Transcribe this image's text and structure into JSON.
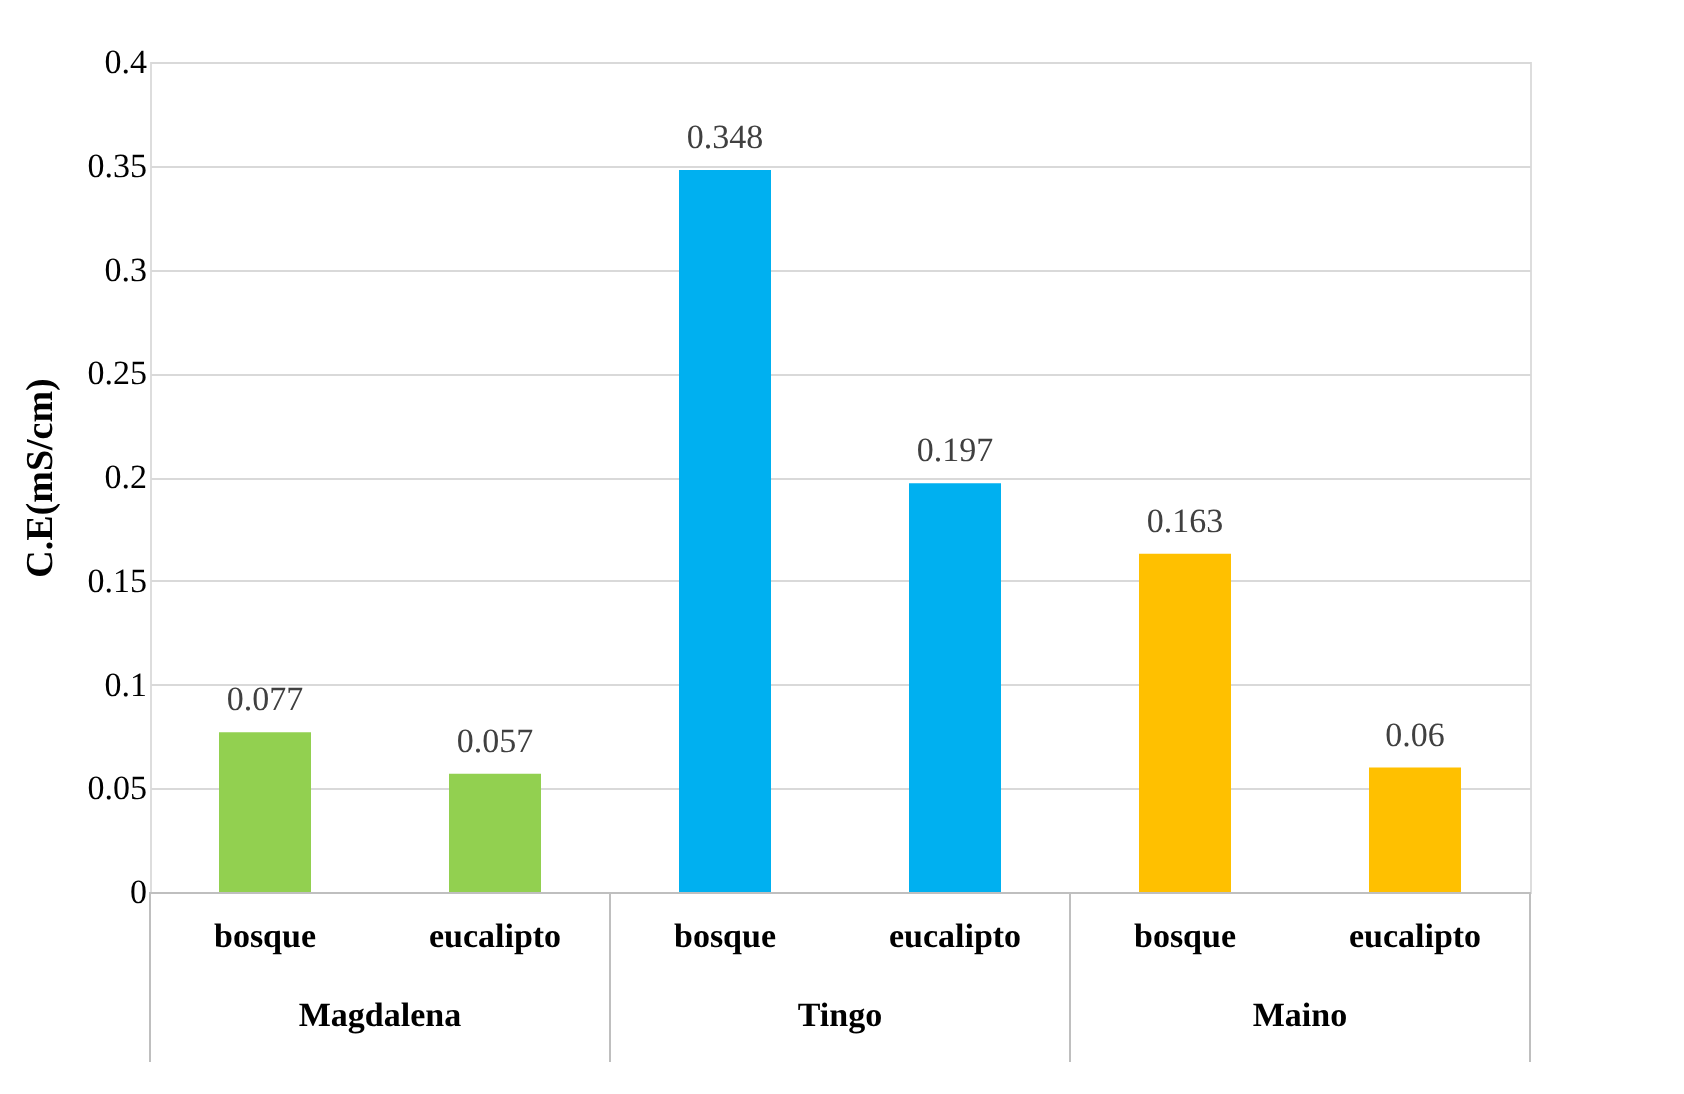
{
  "chart_data": {
    "type": "bar",
    "ylabel": "C.E(mS/cm)",
    "categories": [
      "bosque",
      "eucalipto",
      "bosque",
      "eucalipto",
      "bosque",
      "eucalipto"
    ],
    "values": [
      0.077,
      0.057,
      0.348,
      0.197,
      0.163,
      0.06
    ],
    "colors": [
      "#92d050",
      "#92d050",
      "#00b0f0",
      "#00b0f0",
      "#ffc000",
      "#ffc000"
    ],
    "annotations": [
      "Magdalena",
      "Tingo",
      "Maino"
    ],
    "ylim": [
      0,
      0.4
    ],
    "yticks": [
      0,
      0.05,
      0.1,
      0.15,
      0.2,
      0.25,
      0.3,
      0.35,
      0.4
    ],
    "grid": "y",
    "data_labels": true
  }
}
